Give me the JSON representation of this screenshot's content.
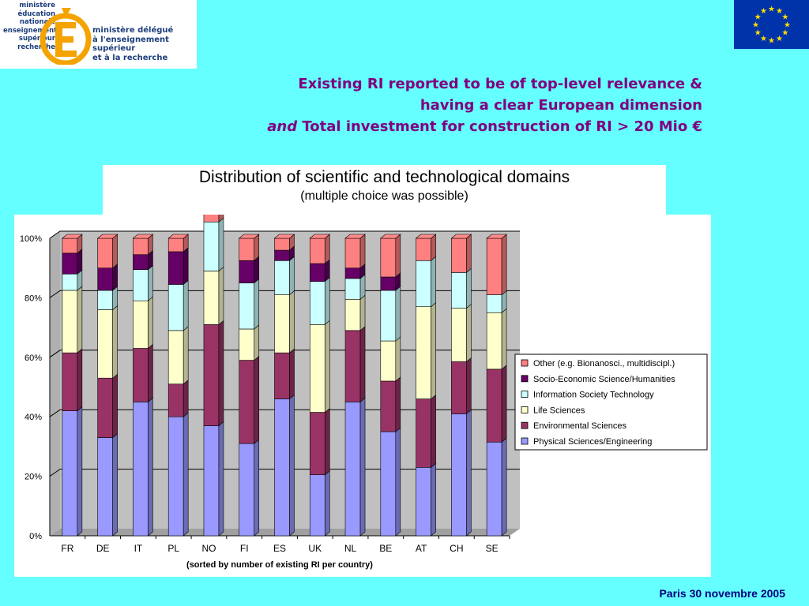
{
  "header": {
    "logo_left_lines": [
      "ministère",
      "éducation",
      "nationale",
      "enseignement",
      "supérieur",
      "recherche"
    ],
    "logo_right_lines": [
      "ministère délégué",
      "à l'enseignement supérieur",
      "et à la recherche"
    ],
    "title_line1": "Existing RI reported to be of top-level relevance &",
    "title_line2": "having a clear European dimension",
    "title_line3_em": "and",
    "title_line3_rest": " Total investment for construction of RI > 20 Mio €"
  },
  "colors": {
    "background": "#66ffff",
    "title": "#800080",
    "footer": "#000080",
    "eu_flag": "#0033aa",
    "eu_star": "#ffdd00"
  },
  "chart_data": {
    "type": "bar",
    "stacked": true,
    "title": "Distribution of scientific and technological domains",
    "subtitle": "(multiple choice was possible)",
    "xlabel": "(sorted by number of existing RI per country)",
    "ylim": [
      0,
      100
    ],
    "yticks": [
      "0%",
      "20%",
      "40%",
      "60%",
      "80%",
      "100%"
    ],
    "legend_position": "right",
    "categories": [
      "FR",
      "DE",
      "IT",
      "PL",
      "NO",
      "FI",
      "ES",
      "UK",
      "NL",
      "BE",
      "AT",
      "CH",
      "SE"
    ],
    "series": [
      {
        "name": "Physical Sciences/Engineering",
        "color": "#9999ff",
        "values": [
          42,
          33,
          45,
          40,
          37,
          31,
          46,
          20.5,
          45,
          35,
          23,
          41,
          31.5
        ]
      },
      {
        "name": "Environmental Sciences",
        "color": "#993366",
        "values": [
          19.5,
          20,
          18,
          11,
          34,
          28,
          15.5,
          21,
          24,
          17,
          23,
          17.5,
          24.5
        ]
      },
      {
        "name": "Life Sciences",
        "color": "#ffffcc",
        "values": [
          21,
          23,
          16,
          18,
          18,
          10.5,
          19.5,
          29.5,
          10.5,
          13.5,
          31,
          18,
          19
        ]
      },
      {
        "name": "Information Society Technology",
        "color": "#ccffff",
        "values": [
          5.5,
          6.5,
          10.5,
          15.5,
          16.5,
          15.5,
          11.5,
          14.5,
          7,
          17,
          15.5,
          12,
          6
        ]
      },
      {
        "name": "Socio-Economic Science/Humanities",
        "color": "#660066",
        "values": [
          7,
          7.5,
          5,
          11,
          0,
          7.5,
          3.5,
          6,
          3.5,
          4.5,
          0,
          0,
          0
        ]
      },
      {
        "name": "Other (e.g. Bionanosci., multidiscipl.)",
        "color": "#ff8080",
        "values": [
          5,
          10,
          5.5,
          4.5,
          3,
          7.5,
          4,
          8.5,
          10,
          13,
          7.5,
          11.5,
          19
        ]
      }
    ]
  },
  "footer": {
    "text": "Paris 30 novembre 2005"
  }
}
